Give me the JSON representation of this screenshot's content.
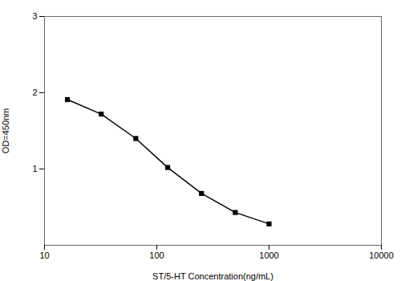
{
  "chart_data": {
    "type": "line",
    "x": [
      16,
      32,
      65,
      125,
      250,
      500,
      1000
    ],
    "values": [
      1.91,
      1.72,
      1.4,
      1.02,
      0.68,
      0.43,
      0.28
    ],
    "xlabel": "ST/5-HT Concentration(ng/mL)",
    "ylabel": "OD=450nm",
    "xlim": [
      10,
      10000
    ],
    "ylim": [
      0,
      3
    ],
    "xticks": [
      10,
      100,
      1000,
      10000
    ],
    "yticks": [
      1,
      2,
      3
    ],
    "log": "x",
    "grid": false,
    "marker": "square"
  }
}
